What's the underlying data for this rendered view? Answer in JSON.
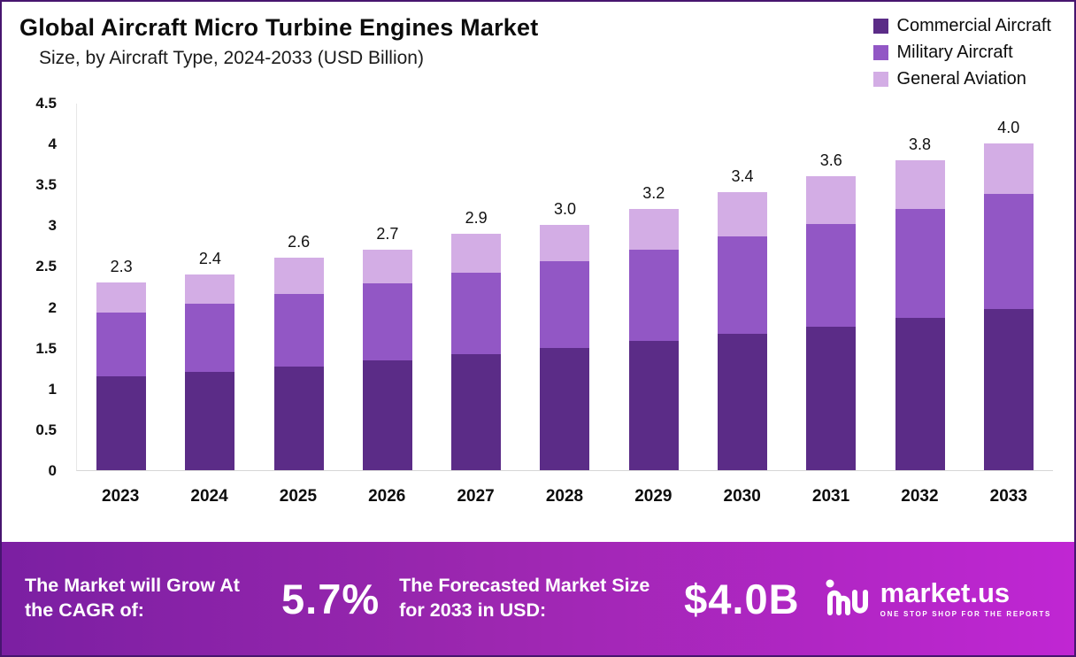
{
  "page": {
    "title": "Global Aircraft Micro Turbine Engines Market",
    "subtitle": "Size, by Aircraft Type, 2024-2033 (USD Billion)"
  },
  "chart_data": {
    "type": "bar",
    "stacked": true,
    "title": "Global Aircraft Micro Turbine Engines Market Size, by Aircraft Type, 2024-2033 (USD Billion)",
    "categories": [
      "2023",
      "2024",
      "2025",
      "2026",
      "2027",
      "2028",
      "2029",
      "2030",
      "2031",
      "2032",
      "2033"
    ],
    "series": [
      {
        "name": "Commercial Aircraft",
        "color": "#5b2c87",
        "values": [
          1.15,
          1.2,
          1.27,
          1.35,
          1.42,
          1.5,
          1.58,
          1.67,
          1.76,
          1.87,
          1.97
        ]
      },
      {
        "name": "Military Aircraft",
        "color": "#9257c5",
        "values": [
          0.78,
          0.84,
          0.89,
          0.94,
          1.0,
          1.06,
          1.12,
          1.19,
          1.26,
          1.33,
          1.41
        ]
      },
      {
        "name": "General Aviation",
        "color": "#d3ade5",
        "values": [
          0.37,
          0.36,
          0.44,
          0.41,
          0.48,
          0.44,
          0.5,
          0.54,
          0.58,
          0.6,
          0.62
        ]
      }
    ],
    "totals": [
      "2.3",
      "2.4",
      "2.6",
      "2.7",
      "2.9",
      "3.0",
      "3.2",
      "3.4",
      "3.6",
      "3.8",
      "4.0"
    ],
    "xlabel": "",
    "ylabel": "",
    "ylim": [
      0,
      4.5
    ],
    "yticks": [
      4.5,
      4,
      3.5,
      3,
      2.5,
      2,
      1.5,
      1,
      0.5,
      0
    ],
    "grid": false,
    "legend_position": "top-right"
  },
  "banner": {
    "cagr_label": "The Market will Grow At the CAGR of:",
    "cagr_value": "5.7%",
    "forecast_label": "The Forecasted Market Size for 2033 in USD:",
    "forecast_value": "$4.0B",
    "brand_name": "market.us",
    "brand_tagline": "ONE STOP SHOP FOR THE REPORTS"
  }
}
